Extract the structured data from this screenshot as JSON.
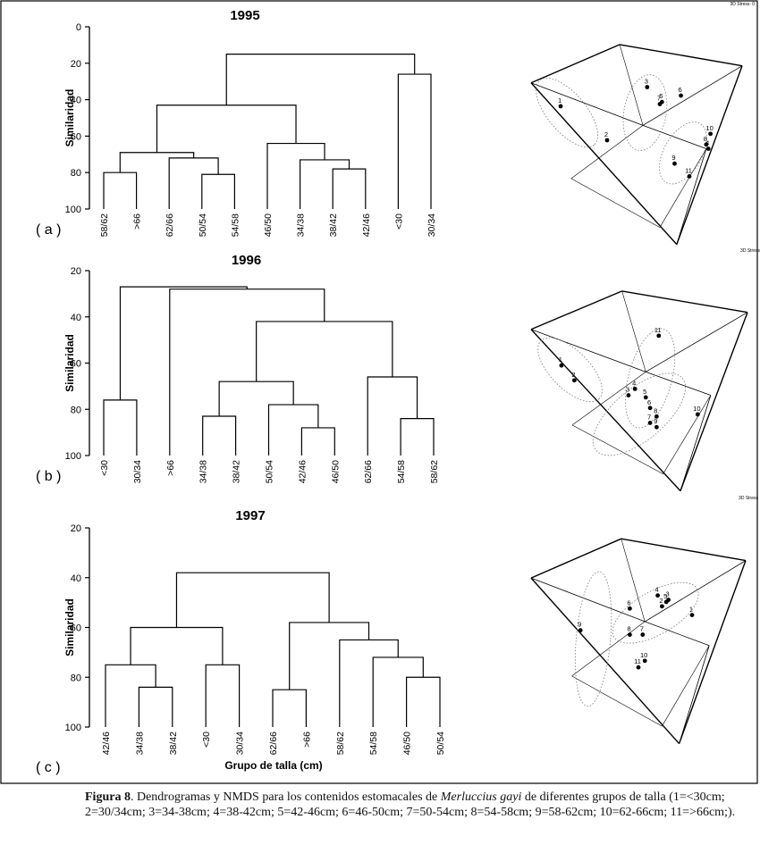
{
  "figure": {
    "caption_label": "Figura 8",
    "caption_sep": ". ",
    "caption_before": "Dendrogramas y NMDS para los contenidos estomacales de ",
    "caption_species": "Merluccius gayi",
    "caption_after": " de diferentes grupos de talla (1=<30cm; 2=30/34cm; 3=34-38cm; 4=38-42cm; 5=42-46cm; 6=46-50cm; 7=50-54cm; 8=54-58cm; 9=58-62cm; 10=62-66cm; 11=>66cm;).",
    "xlabel": "Grupo de talla (cm)",
    "ylabel": "Similaridad",
    "stress_labels": [
      "3D Stress: 0",
      "3D Stress",
      "3D Stress"
    ]
  },
  "chart_data": [
    {
      "type": "dendrogram",
      "panel": "( a )",
      "title": "1995",
      "ylabel": "Similaridad",
      "ylim": [
        0,
        100
      ],
      "yticks": [
        0,
        20,
        40,
        60,
        80,
        100
      ],
      "leaves": [
        "58/62",
        ">66",
        "62/66",
        "50/54",
        "54/58",
        "46/50",
        "34/38",
        "38/42",
        "42/46",
        "<30",
        "30/34"
      ],
      "merges": [
        {
          "a": 0,
          "b": 1,
          "sim": 80
        },
        {
          "a": 3,
          "b": 4,
          "sim": 81
        },
        {
          "a": 2,
          "b": "m1",
          "sim": 72
        },
        {
          "a": "m0",
          "b": "m2",
          "sim": 69
        },
        {
          "a": 7,
          "b": 8,
          "sim": 78
        },
        {
          "a": 6,
          "b": "m4",
          "sim": 73
        },
        {
          "a": 5,
          "b": "m5",
          "sim": 64
        },
        {
          "a": "m3",
          "b": "m6",
          "sim": 43
        },
        {
          "a": 9,
          "b": 10,
          "sim": 26
        },
        {
          "a": "m7",
          "b": "m8",
          "sim": 15
        }
      ]
    },
    {
      "type": "dendrogram",
      "panel": "( b )",
      "title": "1996",
      "ylabel": "Similaridad",
      "ylim": [
        20,
        100
      ],
      "yticks": [
        20,
        40,
        60,
        80,
        100
      ],
      "leaves": [
        "<30",
        "30/34",
        ">66",
        "34/38",
        "38/42",
        "50/54",
        "42/46",
        "46/50",
        "62/66",
        "54/58",
        "58/62"
      ],
      "merges": [
        {
          "a": 0,
          "b": 1,
          "sim": 76
        },
        {
          "a": 3,
          "b": 4,
          "sim": 83
        },
        {
          "a": 6,
          "b": 7,
          "sim": 88
        },
        {
          "a": 5,
          "b": "m2",
          "sim": 78
        },
        {
          "a": "m1",
          "b": "m3",
          "sim": 68
        },
        {
          "a": 9,
          "b": 10,
          "sim": 84
        },
        {
          "a": 8,
          "b": "m5",
          "sim": 66
        },
        {
          "a": "m4",
          "b": "m6",
          "sim": 42
        },
        {
          "a": 2,
          "b": "m7",
          "sim": 28
        },
        {
          "a": "m0",
          "b": "m8",
          "sim": 27
        }
      ]
    },
    {
      "type": "dendrogram",
      "panel": "( c )",
      "title": "1997",
      "ylabel": "Similaridad",
      "xlabel": "Grupo de talla (cm)",
      "ylim": [
        20,
        100
      ],
      "yticks": [
        20,
        40,
        60,
        80,
        100
      ],
      "leaves": [
        "42/46",
        "34/38",
        "38/42",
        "<30",
        "30/34",
        "62/66",
        ">66",
        "58/62",
        "54/58",
        "46/50",
        "50/54"
      ],
      "merges": [
        {
          "a": 1,
          "b": 2,
          "sim": 84
        },
        {
          "a": 0,
          "b": "m0",
          "sim": 75
        },
        {
          "a": 3,
          "b": 4,
          "sim": 75
        },
        {
          "a": "m1",
          "b": "m2",
          "sim": 60
        },
        {
          "a": 5,
          "b": 6,
          "sim": 85
        },
        {
          "a": 9,
          "b": 10,
          "sim": 80
        },
        {
          "a": 8,
          "b": "m5",
          "sim": 72
        },
        {
          "a": 7,
          "b": "m6",
          "sim": 65
        },
        {
          "a": "m4",
          "b": "m7",
          "sim": 58
        },
        {
          "a": "m3",
          "b": "m8",
          "sim": 38
        }
      ]
    }
  ],
  "nmds": [
    {
      "type": "scatter",
      "year": "1995",
      "stress_label": "3D Stress: 0",
      "points": [
        {
          "label": "1",
          "x": 0.14,
          "y": 0.34
        },
        {
          "label": "2",
          "x": 0.36,
          "y": 0.5
        },
        {
          "label": "3",
          "x": 0.55,
          "y": 0.25
        },
        {
          "label": "5",
          "x": 0.62,
          "y": 0.32
        },
        {
          "label": "6",
          "x": 0.71,
          "y": 0.29
        },
        {
          "label": "7",
          "x": 0.61,
          "y": 0.33
        },
        {
          "label": "8",
          "x": 0.83,
          "y": 0.52
        },
        {
          "label": "9",
          "x": 0.68,
          "y": 0.61
        },
        {
          "label": "10",
          "x": 0.85,
          "y": 0.47
        },
        {
          "label": "11",
          "x": 0.75,
          "y": 0.67
        },
        {
          "label": "4",
          "x": 0.84,
          "y": 0.54
        }
      ]
    },
    {
      "type": "scatter",
      "year": "1996",
      "stress_label": "3D Stress",
      "points": [
        {
          "label": "1",
          "x": 0.14,
          "y": 0.4
        },
        {
          "label": "2",
          "x": 0.2,
          "y": 0.47
        },
        {
          "label": "3",
          "x": 0.45,
          "y": 0.54
        },
        {
          "label": "4",
          "x": 0.48,
          "y": 0.51
        },
        {
          "label": "5",
          "x": 0.53,
          "y": 0.55
        },
        {
          "label": "6",
          "x": 0.55,
          "y": 0.6
        },
        {
          "label": "7",
          "x": 0.55,
          "y": 0.67
        },
        {
          "label": "8",
          "x": 0.58,
          "y": 0.64
        },
        {
          "label": "9",
          "x": 0.58,
          "y": 0.69
        },
        {
          "label": "10",
          "x": 0.77,
          "y": 0.63
        },
        {
          "label": "11",
          "x": 0.59,
          "y": 0.26
        }
      ]
    },
    {
      "type": "scatter",
      "year": "1997",
      "stress_label": "3D Stress",
      "points": [
        {
          "label": "1",
          "x": 0.75,
          "y": 0.4
        },
        {
          "label": "2",
          "x": 0.61,
          "y": 0.36
        },
        {
          "label": "3",
          "x": 0.64,
          "y": 0.33
        },
        {
          "label": "4",
          "x": 0.59,
          "y": 0.31
        },
        {
          "label": "5",
          "x": 0.63,
          "y": 0.34
        },
        {
          "label": "6",
          "x": 0.46,
          "y": 0.37
        },
        {
          "label": "7",
          "x": 0.52,
          "y": 0.49
        },
        {
          "label": "8",
          "x": 0.46,
          "y": 0.49
        },
        {
          "label": "9",
          "x": 0.23,
          "y": 0.47
        },
        {
          "label": "10",
          "x": 0.53,
          "y": 0.61
        },
        {
          "label": "11",
          "x": 0.5,
          "y": 0.64
        }
      ]
    }
  ]
}
